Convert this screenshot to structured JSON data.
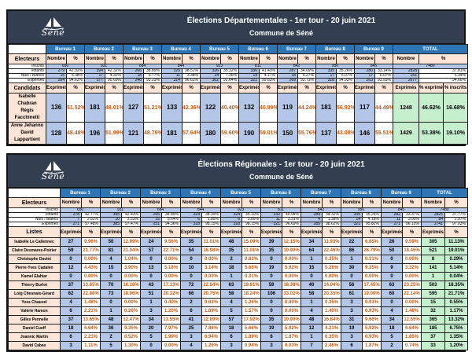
{
  "logo": {
    "text": "Séné"
  },
  "shared": {
    "bureau_labels": [
      "Bureau 1",
      "Bureau 2",
      "Bureau 3",
      "Bureau 4",
      "Bureau 5",
      "Bureau 6",
      "Bureau 7",
      "Bureau 8",
      "Bureau 9"
    ],
    "total_label": "TOTAL",
    "nombre_label": "Nombre",
    "pct_label": "%",
    "exprimes_label": "Exprimés"
  },
  "colors": {
    "dark_header": "#333F50",
    "bureau_blue": "#2E75B6",
    "header_peach": "#FCE4D6",
    "data_blue": "#B4C6E7",
    "pct_orange": "#C55A11",
    "total_green": "#C6EFCE"
  },
  "departementales": {
    "title": "Élections Départementales - 1er tour - 20 juin 2021",
    "subtitle": "Commune de Séné",
    "electors_label": "Electeurs",
    "section_label": "Candidats",
    "total_subheaders": [
      "Exprimés",
      "% exprimés",
      "% inscrits"
    ],
    "electors_rows": [
      {
        "key": "inscrits",
        "label": "Inscrits",
        "values": [
          "650",
          "931",
          "684",
          "844",
          "923",
          "811",
          "842",
          "950",
          "845"
        ],
        "total": "7480"
      },
      {
        "key": "votants",
        "label": "Votants",
        "values": [
          [
            "279",
            "42.92%"
          ],
          [
            "394",
            "42.32%"
          ],
          [
            "266",
            "38.89%"
          ],
          [
            "325",
            "38.51%"
          ],
          [
            "326",
            "35.32%"
          ],
          [
            "336",
            "41.43%"
          ],
          [
            "287",
            "34.09%"
          ],
          [
            "335",
            "35.26%"
          ],
          [
            "280",
            "33.14%"
          ]
        ],
        "total": [
          "2828",
          "37.81%"
        ]
      },
      {
        "key": "nuls-blancs",
        "label": "Nuls / Blancs",
        "values": [
          [
            "15",
            "5.38%"
          ],
          [
            "17",
            "4.32%"
          ],
          [
            "18",
            "6.77%"
          ],
          [
            "11",
            "3.38%"
          ],
          [
            "24",
            "7.36%"
          ],
          [
            "14",
            "4.17%"
          ],
          [
            "18",
            "6.27%"
          ],
          [
            "17",
            "5.07%"
          ],
          [
            "17",
            "6.07%"
          ]
        ],
        "total": [
          "151",
          "5.34%"
        ]
      },
      {
        "key": "exprimes",
        "label": "Exprimés",
        "values": [
          [
            "264",
            "94.62%"
          ],
          [
            "377",
            "95.69%"
          ],
          [
            "248",
            "93.23%"
          ],
          [
            "314",
            "96.62%"
          ],
          [
            "302",
            "92.64%"
          ],
          [
            "322",
            "95.83%"
          ],
          [
            "269",
            "93.73%"
          ],
          [
            "318",
            "94.93%"
          ],
          [
            "263",
            "93.93%"
          ]
        ],
        "total": [
          "2677",
          "94.66%"
        ]
      }
    ],
    "rows": [
      {
        "name": [
          "Isabelle Chabran",
          "Régis Facchinetti"
        ],
        "values": [
          [
            "136",
            "51.52%"
          ],
          [
            "181",
            "48.01%"
          ],
          [
            "127",
            "51.21%"
          ],
          [
            "133",
            "42.36%"
          ],
          [
            "122",
            "40.40%"
          ],
          [
            "132",
            "40.99%"
          ],
          [
            "119",
            "44.24%"
          ],
          [
            "181",
            "56.92%"
          ],
          [
            "117",
            "44.49%"
          ]
        ],
        "total": [
          "1248",
          "46.62%",
          "16.68%"
        ]
      },
      {
        "name": [
          "Anne Jehanno",
          "David Lappartient"
        ],
        "values": [
          [
            "128",
            "48.48%"
          ],
          [
            "196",
            "51.99%"
          ],
          [
            "121",
            "48.79%"
          ],
          [
            "181",
            "57.64%"
          ],
          [
            "180",
            "59.60%"
          ],
          [
            "190",
            "59.01%"
          ],
          [
            "150",
            "55.76%"
          ],
          [
            "137",
            "43.08%"
          ],
          [
            "146",
            "55.51%"
          ]
        ],
        "total": [
          "1429",
          "53.38%",
          "19.10%"
        ]
      }
    ]
  },
  "regionales": {
    "title": "Élections Régionales - 1er tour - 20 juin 2021",
    "subtitle": "Commune de Séné",
    "electors_label": "Electeurs",
    "section_label": "Listes",
    "total_subheaders": [
      "Exprimés",
      "%"
    ],
    "electors_rows": [
      {
        "key": "inscrits",
        "label": "Inscrits",
        "values": [
          "650",
          "931",
          "684",
          "844",
          "923",
          "811",
          "842",
          "950",
          "845"
        ],
        "total": "7480"
      },
      {
        "key": "votants",
        "label": "Votants",
        "values": [
          [
            "278",
            "42.77%"
          ],
          [
            "395",
            "42.43%"
          ],
          [
            "266",
            "38.89%"
          ],
          [
            "324",
            "38.39%"
          ],
          [
            "324",
            "35.10%"
          ],
          [
            "332",
            "40.94%"
          ],
          [
            "289",
            "34.32%"
          ],
          [
            "335",
            "35.26%"
          ],
          [
            "282",
            "33.37%"
          ]
        ],
        "total": [
          "2825",
          "37.77%"
        ]
      },
      {
        "key": "nuls-blancs",
        "label": "Nuls / Blancs",
        "values": [
          [
            "7",
            "2.52%"
          ],
          [
            "10",
            "2.53%"
          ],
          [
            "15",
            "5.64%"
          ],
          [
            "6",
            "1.85%"
          ],
          [
            "6",
            "1.85%"
          ],
          [
            "11",
            "3.31%"
          ],
          [
            "4",
            "1.38%"
          ],
          [
            "14",
            "4.18%"
          ],
          [
            "11",
            "3.90%"
          ]
        ],
        "total": [
          "84",
          "2.97%"
        ]
      },
      {
        "key": "exprimes",
        "label": "Exprimés",
        "values": [
          [
            "271",
            "97.48%"
          ],
          [
            "385",
            "97.47%"
          ],
          [
            "251",
            "94.36%"
          ],
          [
            "318",
            "98.15%"
          ],
          [
            "318",
            "98.15%"
          ],
          [
            "321",
            "96.69%"
          ],
          [
            "285",
            "98.62%"
          ],
          [
            "321",
            "95.82%"
          ],
          [
            "271",
            "96.10%"
          ]
        ],
        "total": [
          "2741",
          "97.03%"
        ]
      }
    ],
    "rows": [
      {
        "name": "Isabelle Le Callennec",
        "values": [
          [
            "27",
            "9.96%"
          ],
          [
            "50",
            "12.99%"
          ],
          [
            "24",
            "9.56%"
          ],
          [
            "35",
            "11.01%"
          ],
          [
            "48",
            "15.09%"
          ],
          [
            "39",
            "12.15%"
          ],
          [
            "34",
            "11.93%"
          ],
          [
            "22",
            "6.85%"
          ],
          [
            "26",
            "9.59%"
          ]
        ],
        "total": [
          "305",
          "11.13%"
        ]
      },
      {
        "name": "Claire Desmares-Poirier",
        "values": [
          [
            "59",
            "21.77%"
          ],
          [
            "81",
            "21.04%"
          ],
          [
            "57",
            "22.71%"
          ],
          [
            "54",
            "16.98%"
          ],
          [
            "35",
            "11.01%"
          ],
          [
            "35",
            "10.90%"
          ],
          [
            "64",
            "22.46%"
          ],
          [
            "86",
            "26.79%"
          ],
          [
            "50",
            "18.45%"
          ]
        ],
        "total": [
          "521",
          "19.01%"
        ]
      },
      {
        "name": "Christophe Daviet",
        "values": [
          [
            "0",
            "0.00%"
          ],
          [
            "4",
            "1.04%"
          ],
          [
            "0",
            "0.00%"
          ],
          [
            "0",
            "0.00%"
          ],
          [
            "2",
            "0.63%"
          ],
          [
            "0",
            "0.00%"
          ],
          [
            "1",
            "0.35%"
          ],
          [
            "1",
            "0.31%"
          ],
          [
            "0",
            "0.00%"
          ]
        ],
        "total": [
          "8",
          "0.29%"
        ]
      },
      {
        "name": "Pierre-Yves Cadalen",
        "values": [
          [
            "12",
            "4.43%"
          ],
          [
            "15",
            "3.90%"
          ],
          [
            "13",
            "5.18%"
          ],
          [
            "10",
            "3.14%"
          ],
          [
            "18",
            "5.66%"
          ],
          [
            "19",
            "5.92%"
          ],
          [
            "15",
            "5.26%"
          ],
          [
            "30",
            "9.35%"
          ],
          [
            "9",
            "3.32%"
          ]
        ],
        "total": [
          "141",
          "5.14%"
        ]
      },
      {
        "name": "Kamel Elahiar",
        "values": [
          [
            "0",
            "0.00%"
          ],
          [
            "0",
            "0.00%"
          ],
          [
            "0",
            "0.00%"
          ],
          [
            "0",
            "0.00%"
          ],
          [
            "1",
            "0.31%"
          ],
          [
            "0",
            "0.00%"
          ],
          [
            "0",
            "0.00%"
          ],
          [
            "0",
            "0.00%"
          ],
          [
            "0",
            "0.00%"
          ]
        ],
        "total": [
          "1",
          "0.04%"
        ]
      },
      {
        "name": "Thierry Burlot",
        "values": [
          [
            "37",
            "13.65%"
          ],
          [
            "70",
            "18.18%"
          ],
          [
            "43",
            "17.13%"
          ],
          [
            "72",
            "22.64%"
          ],
          [
            "63",
            "19.81%"
          ],
          [
            "59",
            "18.38%"
          ],
          [
            "40",
            "14.04%"
          ],
          [
            "56",
            "17.45%"
          ],
          [
            "63",
            "23.25%"
          ]
        ],
        "total": [
          "503",
          "18.35%"
        ]
      },
      {
        "name": "Loïg Chesnais-Girard",
        "values": [
          [
            "62",
            "22.88%"
          ],
          [
            "73",
            "18.96%"
          ],
          [
            "51",
            "20.32%"
          ],
          [
            "66",
            "20.75%"
          ],
          [
            "58",
            "18.24%"
          ],
          [
            "106",
            "33.02%"
          ],
          [
            "58",
            "20.35%"
          ],
          [
            "61",
            "19.00%"
          ],
          [
            "60",
            "22.14%"
          ]
        ],
        "total": [
          "595",
          "21.71%"
        ]
      },
      {
        "name": "Yves Chauvel",
        "values": [
          [
            "4",
            "1.48%"
          ],
          [
            "0",
            "0.00%"
          ],
          [
            "1",
            "0.40%"
          ],
          [
            "2",
            "0.63%"
          ],
          [
            "4",
            "1.26%"
          ],
          [
            "0",
            "0.00%"
          ],
          [
            "1",
            "0.35%"
          ],
          [
            "3",
            "0.93%"
          ],
          [
            "0",
            "0.00%"
          ]
        ],
        "total": [
          "15",
          "0.55%"
        ]
      },
      {
        "name": "Valérie Hamon",
        "values": [
          [
            "6",
            "2.21%"
          ],
          [
            "1",
            "0.26%"
          ],
          [
            "3",
            "1.20%"
          ],
          [
            "6",
            "1.89%"
          ],
          [
            "5",
            "1.57%"
          ],
          [
            "0",
            "0.00%"
          ],
          [
            "4",
            "1.40%"
          ],
          [
            "3",
            "0.93%"
          ],
          [
            "4",
            "1.48%"
          ]
        ],
        "total": [
          "32",
          "1.17%"
        ]
      },
      {
        "name": "Gilles Pennelle",
        "values": [
          [
            "37",
            "13.65%"
          ],
          [
            "48",
            "12.47%"
          ],
          [
            "34",
            "13.55%"
          ],
          [
            "41",
            "12.89%"
          ],
          [
            "57",
            "17.92%"
          ],
          [
            "35",
            "10.90%"
          ],
          [
            "48",
            "16.84%"
          ],
          [
            "31",
            "9.66%"
          ],
          [
            "34",
            "12.55%"
          ]
        ],
        "total": [
          "365",
          "13.32%"
        ]
      },
      {
        "name": "Daniel Cueff",
        "values": [
          [
            "18",
            "6.64%"
          ],
          [
            "36",
            "9.35%"
          ],
          [
            "20",
            "7.97%"
          ],
          [
            "25",
            "7.86%"
          ],
          [
            "18",
            "5.66%"
          ],
          [
            "19",
            "5.92%"
          ],
          [
            "12",
            "4.21%"
          ],
          [
            "19",
            "5.92%"
          ],
          [
            "18",
            "6.64%"
          ]
        ],
        "total": [
          "185",
          "6.75%"
        ]
      },
      {
        "name": "Joannic Martin",
        "values": [
          [
            "6",
            "2.21%"
          ],
          [
            "2",
            "0.52%"
          ],
          [
            "5",
            "1.99%"
          ],
          [
            "3",
            "0.94%"
          ],
          [
            "6",
            "1.89%"
          ],
          [
            "6",
            "1.87%"
          ],
          [
            "1",
            "0.35%"
          ],
          [
            "3",
            "0.93%"
          ],
          [
            "5",
            "1.85%"
          ]
        ],
        "total": [
          "37",
          "1.35%"
        ]
      },
      {
        "name": "David Cabas",
        "values": [
          [
            "3",
            "1.11%"
          ],
          [
            "5",
            "1.30%"
          ],
          [
            "0",
            "0.00%"
          ],
          [
            "4",
            "1.26%"
          ],
          [
            "3",
            "0.94%"
          ],
          [
            "3",
            "0.93%"
          ],
          [
            "7",
            "2.46%"
          ],
          [
            "6",
            "1.87%"
          ],
          [
            "2",
            "0.74%"
          ]
        ],
        "total": [
          "33",
          "1.20%"
        ]
      }
    ]
  }
}
